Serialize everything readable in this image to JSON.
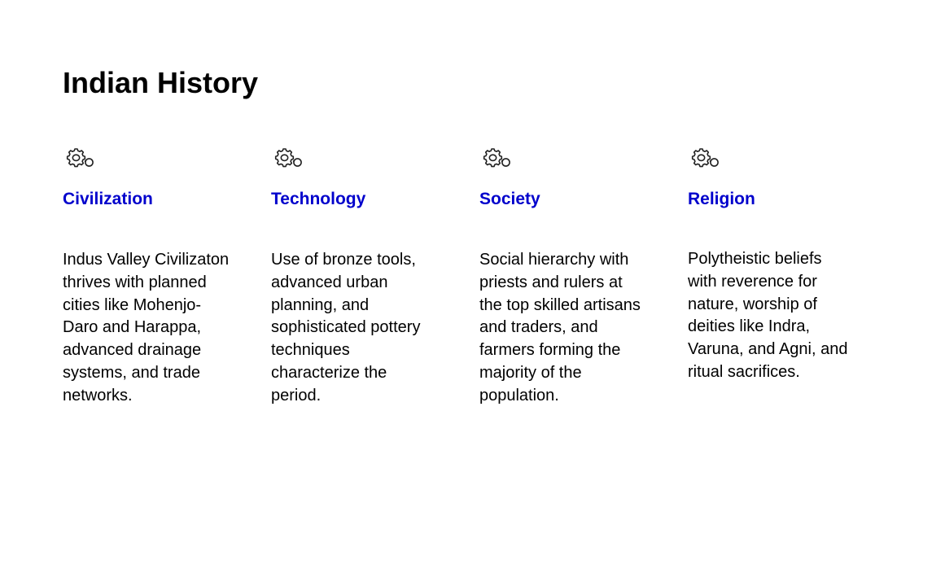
{
  "slide": {
    "title": "Indian History",
    "accent_color": "#0000CC",
    "columns": [
      {
        "icon": "gear-search-icon",
        "heading": "Civilization",
        "body": "Indus Valley Civilizaton thrives with planned cities like Mohenjo-Daro and Harappa, advanced drainage systems, and trade networks."
      },
      {
        "icon": "gear-search-icon",
        "heading": "Technology",
        "body": "Use of bronze tools, advanced urban planning, and sophisticated pottery techniques characterize the period."
      },
      {
        "icon": "gear-search-icon",
        "heading": "Society",
        "body": "Social hierarchy with priests and rulers at the top skilled artisans and traders, and farmers forming the majority of the population."
      },
      {
        "icon": "gear-search-icon",
        "heading": "Religion",
        "body": "Polytheistic beliefs with reverence for nature, worship of deities like Indra, Varuna, and Agni, and ritual sacrifices."
      }
    ]
  }
}
